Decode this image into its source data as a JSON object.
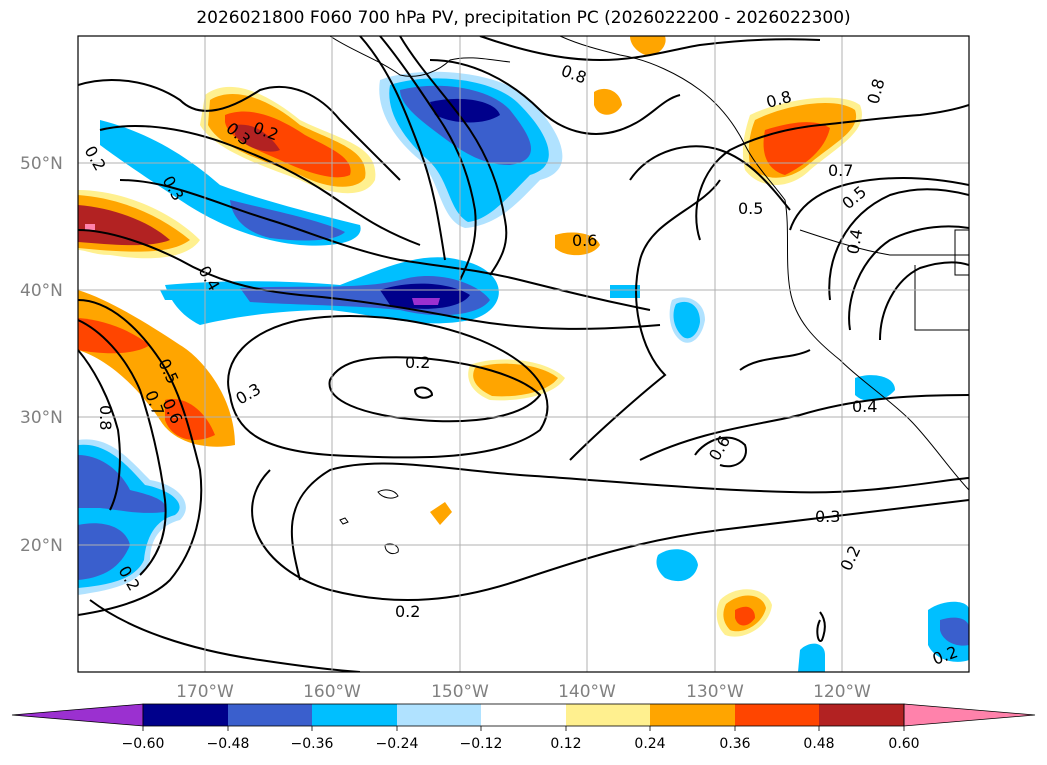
{
  "title": "2026021800 F060 700 hPa PV, precipitation PC (2026022200 - 2026022300)",
  "lat_labels": [
    "50°N",
    "40°N",
    "30°N",
    "20°N"
  ],
  "lon_labels": [
    "170°W",
    "160°W",
    "150°W",
    "140°W",
    "130°W",
    "120°W"
  ],
  "colorbar": {
    "tick_labels": [
      "−0.60",
      "−0.48",
      "−0.36",
      "−0.24",
      "−0.12",
      "0.12",
      "0.24",
      "0.36",
      "0.48",
      "0.60"
    ],
    "colors": [
      "#9b30d0",
      "#00008b",
      "#3a5fcd",
      "#00bfff",
      "#b0e2ff",
      "#ffffff",
      "#fff08f",
      "#ffa500",
      "#ff4500",
      "#b22222",
      "#ff82ab"
    ]
  },
  "contour_labels": [
    "0.2",
    "0.3",
    "0.4",
    "0.5",
    "0.6",
    "0.7",
    "0.8"
  ]
}
